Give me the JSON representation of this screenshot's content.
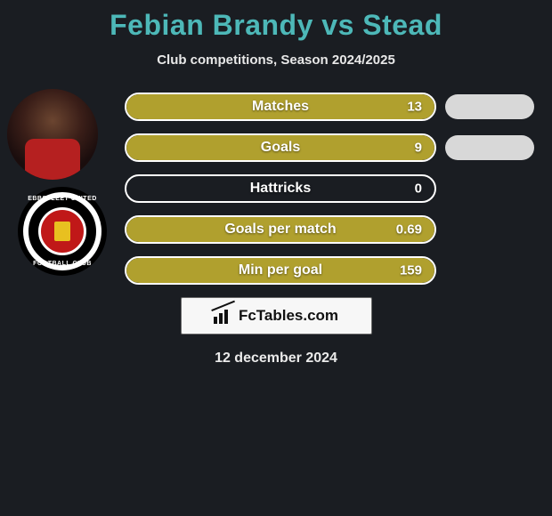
{
  "title": "Febian Brandy vs Stead",
  "subtitle": "Club competitions, Season 2024/2025",
  "date": "12 december 2024",
  "brand": "FcTables.com",
  "colors": {
    "background": "#1a1d22",
    "title": "#4db8b8",
    "bar_fill": "#b0a02e",
    "bar_border": "#ffffff",
    "right_pill": "#d8d8d8",
    "text": "#ffffff"
  },
  "club_badge": {
    "top_text": "EBBSFLEET UNITED",
    "bottom_text": "FOOTBALL CLUB"
  },
  "rows": [
    {
      "label": "Matches",
      "value": "13",
      "fill_pct": 100,
      "show_right_pill": true
    },
    {
      "label": "Goals",
      "value": "9",
      "fill_pct": 100,
      "show_right_pill": true
    },
    {
      "label": "Hattricks",
      "value": "0",
      "fill_pct": 0,
      "show_right_pill": false
    },
    {
      "label": "Goals per match",
      "value": "0.69",
      "fill_pct": 100,
      "show_right_pill": false
    },
    {
      "label": "Min per goal",
      "value": "159",
      "fill_pct": 100,
      "show_right_pill": false
    }
  ]
}
